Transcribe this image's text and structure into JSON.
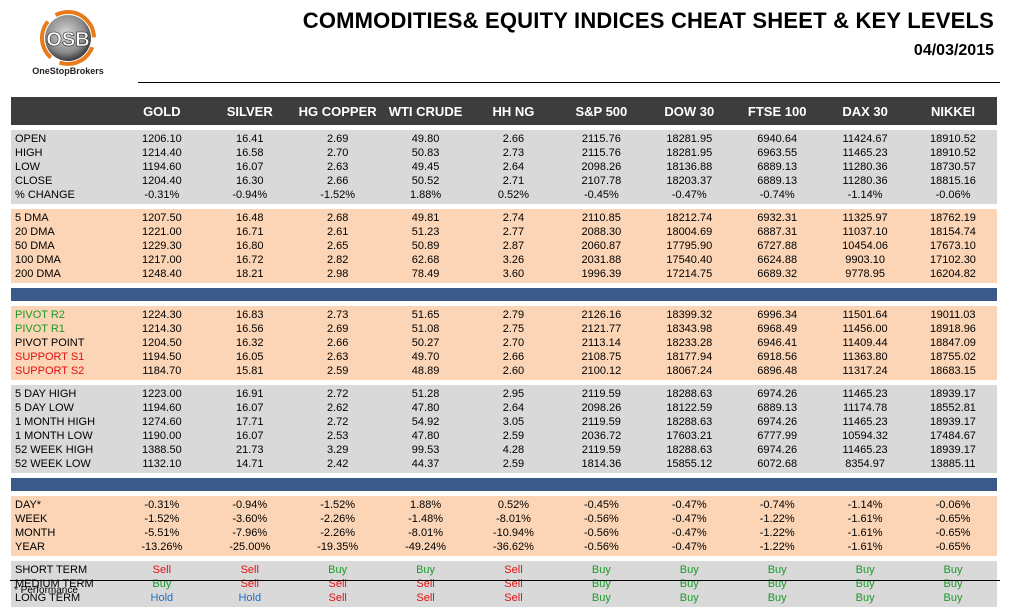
{
  "header": {
    "title": "COMMODITIES& EQUITY INDICES CHEAT SHEET & KEY LEVELS",
    "date": "04/03/2015",
    "logo_text": "OneStopBrokers",
    "logo_letters": "OSB"
  },
  "columns": [
    "GOLD",
    "SILVER",
    "HG COPPER",
    "WTI CRUDE",
    "HH NG",
    "S&P 500",
    "DOW 30",
    "FTSE 100",
    "DAX 30",
    "NIKKEI"
  ],
  "sections": [
    {
      "style": "gray",
      "rows": [
        {
          "label": "OPEN",
          "values": [
            "1206.10",
            "16.41",
            "2.69",
            "49.80",
            "2.66",
            "2115.76",
            "18281.95",
            "6940.64",
            "11424.67",
            "18910.52"
          ]
        },
        {
          "label": "HIGH",
          "values": [
            "1214.40",
            "16.58",
            "2.70",
            "50.83",
            "2.73",
            "2115.76",
            "18281.95",
            "6963.55",
            "11465.23",
            "18910.52"
          ]
        },
        {
          "label": "LOW",
          "values": [
            "1194.60",
            "16.07",
            "2.63",
            "49.45",
            "2.64",
            "2098.26",
            "18136.88",
            "6889.13",
            "11280.36",
            "18730.57"
          ]
        },
        {
          "label": "CLOSE",
          "values": [
            "1204.40",
            "16.30",
            "2.66",
            "50.52",
            "2.71",
            "2107.78",
            "18203.37",
            "6889.13",
            "11280.36",
            "18815.16"
          ]
        },
        {
          "label": "% CHANGE",
          "values": [
            "-0.31%",
            "-0.94%",
            "-1.52%",
            "1.88%",
            "0.52%",
            "-0.45%",
            "-0.47%",
            "-0.74%",
            "-1.14%",
            "-0.06%"
          ]
        }
      ]
    },
    {
      "style": "peach",
      "rows": [
        {
          "label": "5 DMA",
          "values": [
            "1207.50",
            "16.48",
            "2.68",
            "49.81",
            "2.74",
            "2110.85",
            "18212.74",
            "6932.31",
            "11325.97",
            "18762.19"
          ]
        },
        {
          "label": "20 DMA",
          "values": [
            "1221.00",
            "16.71",
            "2.61",
            "51.23",
            "2.77",
            "2088.30",
            "18004.69",
            "6887.31",
            "11037.10",
            "18154.74"
          ]
        },
        {
          "label": "50 DMA",
          "values": [
            "1229.30",
            "16.80",
            "2.65",
            "50.89",
            "2.87",
            "2060.87",
            "17795.90",
            "6727.88",
            "10454.06",
            "17673.10"
          ]
        },
        {
          "label": "100 DMA",
          "values": [
            "1217.00",
            "16.72",
            "2.82",
            "62.68",
            "3.26",
            "2031.88",
            "17540.40",
            "6624.88",
            "9903.10",
            "17102.30"
          ]
        },
        {
          "label": "200 DMA",
          "values": [
            "1248.40",
            "18.21",
            "2.98",
            "78.49",
            "3.60",
            "1996.39",
            "17214.75",
            "6689.32",
            "9778.95",
            "16204.82"
          ]
        }
      ]
    },
    {
      "style": "blue-sep",
      "rows": []
    },
    {
      "style": "peach",
      "rows": [
        {
          "label": "PIVOT R2",
          "label_color": "green",
          "values": [
            "1224.30",
            "16.83",
            "2.73",
            "51.65",
            "2.79",
            "2126.16",
            "18399.32",
            "6996.34",
            "11501.64",
            "19011.03"
          ]
        },
        {
          "label": "PIVOT R1",
          "label_color": "green",
          "values": [
            "1214.30",
            "16.56",
            "2.69",
            "51.08",
            "2.75",
            "2121.77",
            "18343.98",
            "6968.49",
            "11456.00",
            "18918.96"
          ]
        },
        {
          "label": "PIVOT POINT",
          "label_color": "",
          "values": [
            "1204.50",
            "16.32",
            "2.66",
            "50.27",
            "2.70",
            "2113.14",
            "18233.28",
            "6946.41",
            "11409.44",
            "18847.09"
          ]
        },
        {
          "label": "SUPPORT  S1",
          "label_color": "red",
          "values": [
            "1194.50",
            "16.05",
            "2.63",
            "49.70",
            "2.66",
            "2108.75",
            "18177.94",
            "6918.56",
            "11363.80",
            "18755.02"
          ]
        },
        {
          "label": "SUPPORT  S2",
          "label_color": "red",
          "values": [
            "1184.70",
            "15.81",
            "2.59",
            "48.89",
            "2.60",
            "2100.12",
            "18067.24",
            "6896.48",
            "11317.24",
            "18683.15"
          ]
        }
      ]
    },
    {
      "style": "gray",
      "rows": [
        {
          "label": "5 DAY HIGH",
          "values": [
            "1223.00",
            "16.91",
            "2.72",
            "51.28",
            "2.95",
            "2119.59",
            "18288.63",
            "6974.26",
            "11465.23",
            "18939.17"
          ]
        },
        {
          "label": "5 DAY LOW",
          "values": [
            "1194.60",
            "16.07",
            "2.62",
            "47.80",
            "2.64",
            "2098.26",
            "18122.59",
            "6889.13",
            "11174.78",
            "18552.81"
          ]
        },
        {
          "label": "1 MONTH HIGH",
          "values": [
            "1274.60",
            "17.71",
            "2.72",
            "54.92",
            "3.05",
            "2119.59",
            "18288.63",
            "6974.26",
            "11465.23",
            "18939.17"
          ]
        },
        {
          "label": "1 MONTH LOW",
          "values": [
            "1190.00",
            "16.07",
            "2.53",
            "47.80",
            "2.59",
            "2036.72",
            "17603.21",
            "6777.99",
            "10594.32",
            "17484.67"
          ]
        },
        {
          "label": "52 WEEK HIGH",
          "values": [
            "1388.50",
            "21.73",
            "3.29",
            "99.53",
            "4.28",
            "2119.59",
            "18288.63",
            "6974.26",
            "11465.23",
            "18939.17"
          ]
        },
        {
          "label": "52 WEEK LOW",
          "values": [
            "1132.10",
            "14.71",
            "2.42",
            "44.37",
            "2.59",
            "1814.36",
            "15855.12",
            "6072.68",
            "8354.97",
            "13885.11"
          ]
        }
      ]
    },
    {
      "style": "blue-sep",
      "rows": []
    },
    {
      "style": "peach",
      "rows": [
        {
          "label": "DAY*",
          "values": [
            "-0.31%",
            "-0.94%",
            "-1.52%",
            "1.88%",
            "0.52%",
            "-0.45%",
            "-0.47%",
            "-0.74%",
            "-1.14%",
            "-0.06%"
          ]
        },
        {
          "label": "WEEK",
          "values": [
            "-1.52%",
            "-3.60%",
            "-2.26%",
            "-1.48%",
            "-8.01%",
            "-0.56%",
            "-0.47%",
            "-1.22%",
            "-1.61%",
            "-0.65%"
          ]
        },
        {
          "label": "MONTH",
          "values": [
            "-5.51%",
            "-7.96%",
            "-2.26%",
            "-8.01%",
            "-10.94%",
            "-0.56%",
            "-0.47%",
            "-1.22%",
            "-1.61%",
            "-0.65%"
          ]
        },
        {
          "label": "YEAR",
          "values": [
            "-13.26%",
            "-25.00%",
            "-19.35%",
            "-49.24%",
            "-36.62%",
            "-0.56%",
            "-0.47%",
            "-1.22%",
            "-1.61%",
            "-0.65%"
          ]
        }
      ]
    },
    {
      "style": "gray",
      "rows": [
        {
          "label": "SHORT TERM",
          "values": [
            "Sell",
            "Sell",
            "Buy",
            "Buy",
            "Sell",
            "Buy",
            "Buy",
            "Buy",
            "Buy",
            "Buy"
          ]
        },
        {
          "label": "MEDIUM TERM",
          "values": [
            "Buy",
            "Sell",
            "Sell",
            "Sell",
            "Sell",
            "Buy",
            "Buy",
            "Buy",
            "Buy",
            "Buy"
          ]
        },
        {
          "label": "LONG TERM",
          "values": [
            "Hold",
            "Hold",
            "Sell",
            "Sell",
            "Sell",
            "Buy",
            "Buy",
            "Buy",
            "Buy",
            "Buy"
          ]
        }
      ]
    }
  ],
  "signal_colors": {
    "Buy": "#1a9a2a",
    "Sell": "#e01010",
    "Hold": "#1f6fc5"
  },
  "footnote": "* Performance"
}
